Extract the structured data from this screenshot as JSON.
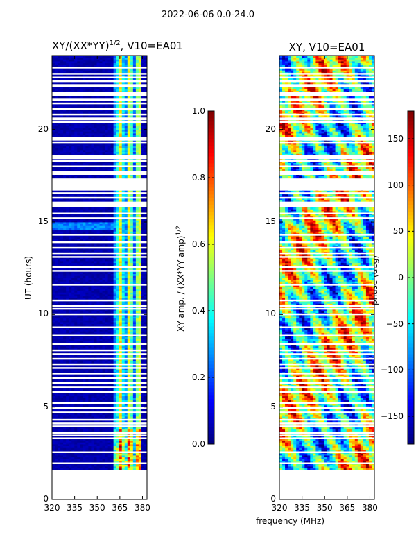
{
  "chart_data": {
    "suptitle": "2022-06-06 0.0-24.0",
    "xlabel": "frequency (MHz)",
    "ylabel": "UT (hours)",
    "panels": [
      {
        "type": "heatmap",
        "title_main": "XY/(XX*YY)",
        "title_sup": "1/2",
        "title_tail": ", V10=EA01",
        "xlim": [
          320,
          383
        ],
        "ylim": [
          0,
          24
        ],
        "xticks": [
          320,
          335,
          350,
          365,
          380
        ],
        "yticks": [
          0,
          5,
          10,
          15,
          20
        ],
        "data_start_hour": 1.6,
        "active_band_mhz": [
          360,
          380
        ],
        "colorbar": {
          "label_main": "XY amp. / (XX*YY amp)",
          "label_sup": "1/2",
          "range": [
            0.0,
            1.0
          ],
          "ticks": [
            "0.0",
            "0.2",
            "0.4",
            "0.6",
            "0.8",
            "1.0"
          ],
          "colormap": "jet"
        }
      },
      {
        "type": "heatmap",
        "title": "XY, V10=EA01",
        "xlim": [
          320,
          383
        ],
        "ylim": [
          0,
          24
        ],
        "xticks": [
          320,
          335,
          350,
          365,
          380
        ],
        "yticks": [
          0,
          5,
          10,
          15,
          20
        ],
        "data_start_hour": 1.6,
        "colorbar": {
          "label": "phase (deg)",
          "range": [
            -180,
            180
          ],
          "ticks": [
            "−150",
            "−100",
            "−50",
            "0",
            "50",
            "100",
            "150"
          ],
          "tick_values": [
            -150,
            -100,
            -50,
            0,
            50,
            100,
            150
          ],
          "colormap": "jet"
        }
      }
    ],
    "blank_rows_ut": [
      1.95,
      2.55,
      3.3,
      3.45,
      3.6,
      3.95,
      4.1,
      4.3,
      4.7,
      4.95,
      5.2,
      5.8,
      6.05,
      6.3,
      6.55,
      6.8,
      7.1,
      7.3,
      7.6,
      7.85,
      8.05,
      8.4,
      8.85,
      9.3,
      10.0,
      10.3,
      10.45,
      10.75,
      11.6,
      12.35,
      12.55,
      13.1,
      13.3,
      13.6,
      13.9,
      14.3,
      15.2,
      15.45,
      16.3,
      16.55,
      17.3,
      18.0,
      18.3,
      19.3,
      20.4,
      20.8,
      21.1,
      21.4,
      21.6,
      22.6,
      22.8,
      23.0
    ],
    "blank_bands_ut": [
      [
        15.8,
        16.1
      ],
      [
        16.7,
        17.25
      ],
      [
        17.55,
        17.75
      ],
      [
        18.4,
        18.6
      ],
      [
        19.4,
        19.6
      ],
      [
        20.5,
        20.65
      ],
      [
        21.55,
        21.7
      ],
      [
        21.8,
        22.05
      ],
      [
        22.3,
        22.45
      ],
      [
        23.3,
        23.4
      ]
    ]
  }
}
